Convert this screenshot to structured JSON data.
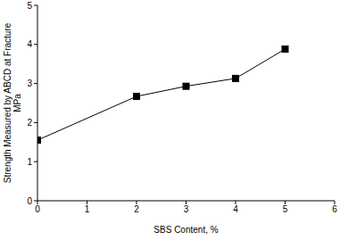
{
  "chart_data": {
    "type": "line",
    "x_label": "SBS Content, %",
    "y_label": [
      "Strength Measured by ABCD at Fracture",
      "MPa"
    ],
    "x": [
      0,
      2,
      3,
      4,
      5
    ],
    "values": [
      1.55,
      2.67,
      2.93,
      3.13,
      3.88
    ],
    "color": "#000000",
    "marker": "square",
    "line_style": "solid",
    "xlim": [
      0,
      6
    ],
    "xticks": [
      0,
      1,
      2,
      3,
      4,
      5,
      6
    ],
    "ylim": [
      0,
      5
    ],
    "yticks": [
      0,
      1,
      2,
      3,
      4,
      5
    ],
    "grid": false
  }
}
